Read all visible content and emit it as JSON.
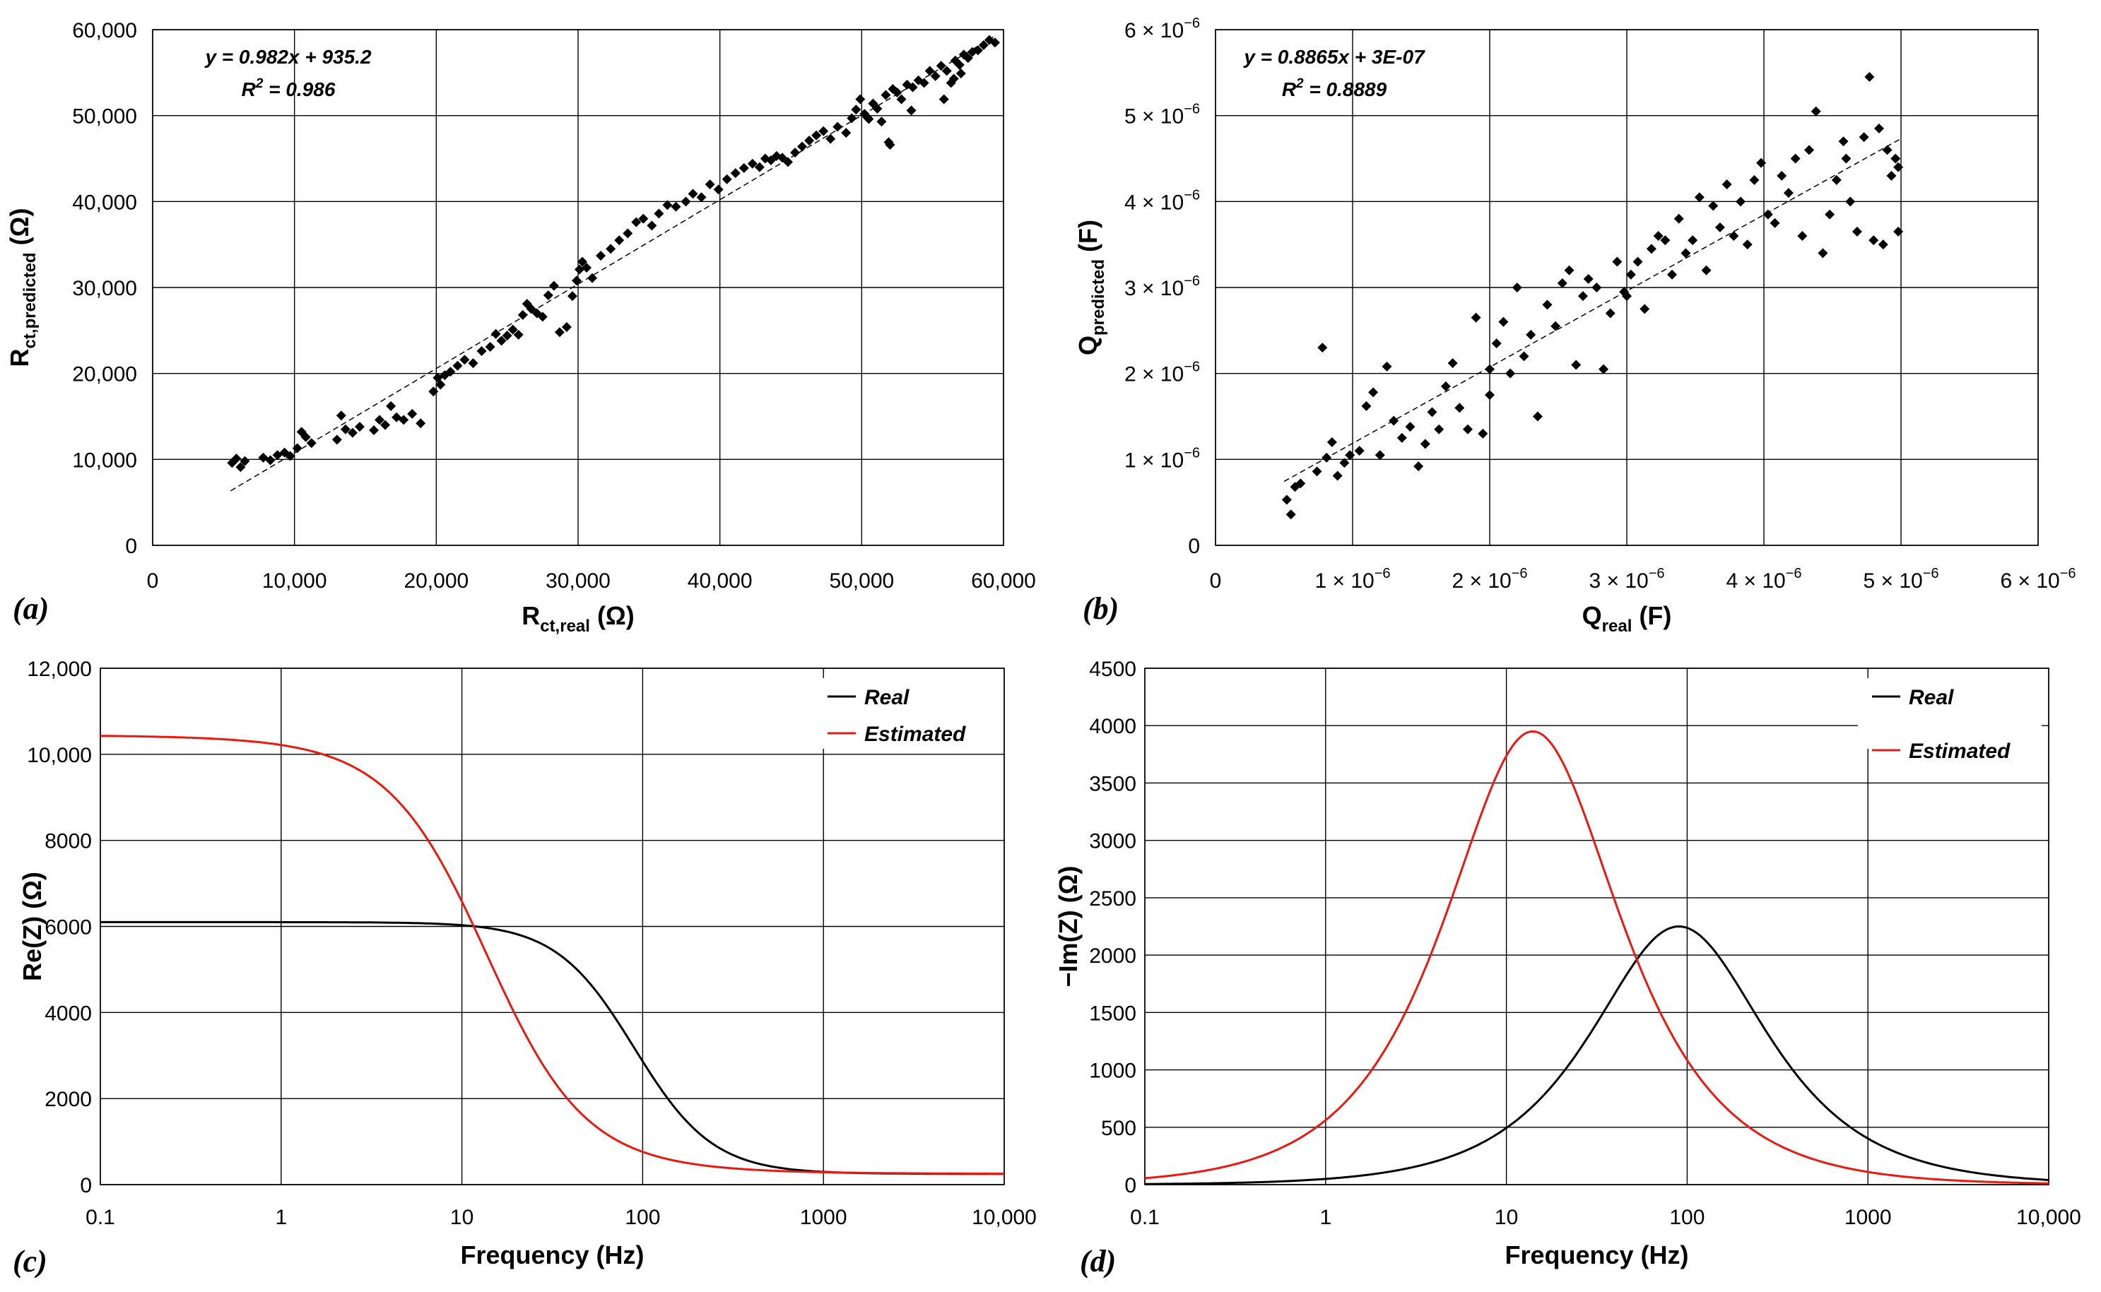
{
  "panels": {
    "a": {
      "label": "(a)"
    },
    "b": {
      "label": "(b)"
    },
    "c": {
      "label": "(c)"
    },
    "d": {
      "label": "(d)"
    }
  },
  "chart_data": [
    {
      "id": "a",
      "type": "scatter",
      "title": "",
      "xlabel_main": "R",
      "xlabel_sub": "ct,real",
      "xlabel_unit": " (Ω)",
      "ylabel_main": "R",
      "ylabel_sub": "ct,predicted",
      "ylabel_unit": " (Ω)",
      "xlim": [
        0,
        60000
      ],
      "ylim": [
        0,
        60000
      ],
      "xticks": [
        0,
        10000,
        20000,
        30000,
        40000,
        50000,
        60000
      ],
      "xtick_labels": [
        "0",
        "10,000",
        "20,000",
        "30,000",
        "40,000",
        "50,000",
        "60,000"
      ],
      "yticks": [
        0,
        10000,
        20000,
        30000,
        40000,
        50000,
        60000
      ],
      "ytick_labels": [
        "0",
        "10,000",
        "20,000",
        "30,000",
        "40,000",
        "50,000",
        "60,000"
      ],
      "grid": true,
      "trendline": {
        "slope": 0.982,
        "intercept": 935.2,
        "x_range": [
          5500,
          59500
        ]
      },
      "equation": "y = 0.982x + 935.2",
      "r2_prefix": "R",
      "r2_power": "2",
      "r2_value": " = 0.986",
      "points": [
        [
          5600,
          9600
        ],
        [
          5900,
          10100
        ],
        [
          6200,
          9100
        ],
        [
          6500,
          9800
        ],
        [
          7800,
          10200
        ],
        [
          8300,
          9900
        ],
        [
          8800,
          10500
        ],
        [
          9300,
          10800
        ],
        [
          9700,
          10400
        ],
        [
          10200,
          11300
        ],
        [
          10500,
          13200
        ],
        [
          10800,
          12600
        ],
        [
          11200,
          11900
        ],
        [
          13000,
          12300
        ],
        [
          13300,
          15100
        ],
        [
          13600,
          13500
        ],
        [
          14100,
          13100
        ],
        [
          14600,
          13800
        ],
        [
          15600,
          13400
        ],
        [
          16000,
          14600
        ],
        [
          16400,
          14000
        ],
        [
          16800,
          16200
        ],
        [
          17200,
          14900
        ],
        [
          17700,
          14600
        ],
        [
          18300,
          15300
        ],
        [
          18900,
          14200
        ],
        [
          19800,
          17900
        ],
        [
          20100,
          19500
        ],
        [
          20300,
          18700
        ],
        [
          20600,
          19800
        ],
        [
          21000,
          20200
        ],
        [
          21500,
          20900
        ],
        [
          22000,
          21600
        ],
        [
          22600,
          21200
        ],
        [
          23200,
          22600
        ],
        [
          23800,
          23100
        ],
        [
          24200,
          24600
        ],
        [
          24600,
          23800
        ],
        [
          25000,
          24400
        ],
        [
          25400,
          25100
        ],
        [
          25800,
          24500
        ],
        [
          26100,
          26800
        ],
        [
          26400,
          28100
        ],
        [
          26700,
          27500
        ],
        [
          27100,
          27000
        ],
        [
          27500,
          26600
        ],
        [
          27900,
          29100
        ],
        [
          28300,
          30200
        ],
        [
          28700,
          24800
        ],
        [
          29200,
          25400
        ],
        [
          29600,
          29000
        ],
        [
          29900,
          30800
        ],
        [
          30100,
          32100
        ],
        [
          30300,
          33000
        ],
        [
          30600,
          32300
        ],
        [
          31000,
          31100
        ],
        [
          31600,
          33700
        ],
        [
          32300,
          34500
        ],
        [
          32900,
          35500
        ],
        [
          33500,
          36300
        ],
        [
          34100,
          37600
        ],
        [
          34600,
          38000
        ],
        [
          35200,
          37200
        ],
        [
          35700,
          38600
        ],
        [
          36300,
          39600
        ],
        [
          36900,
          39400
        ],
        [
          37600,
          40000
        ],
        [
          38100,
          40900
        ],
        [
          38700,
          40500
        ],
        [
          39300,
          42000
        ],
        [
          39900,
          41400
        ],
        [
          40500,
          42600
        ],
        [
          41100,
          43300
        ],
        [
          41700,
          43900
        ],
        [
          42300,
          44400
        ],
        [
          42800,
          44000
        ],
        [
          43200,
          45000
        ],
        [
          43600,
          44800
        ],
        [
          44000,
          45300
        ],
        [
          44400,
          45100
        ],
        [
          44800,
          44600
        ],
        [
          45300,
          45700
        ],
        [
          45800,
          46400
        ],
        [
          46300,
          47100
        ],
        [
          46800,
          47700
        ],
        [
          47300,
          48200
        ],
        [
          47800,
          47300
        ],
        [
          48300,
          48700
        ],
        [
          48900,
          48000
        ],
        [
          49300,
          49700
        ],
        [
          49600,
          50700
        ],
        [
          49900,
          51900
        ],
        [
          50200,
          50200
        ],
        [
          50500,
          49600
        ],
        [
          50800,
          51400
        ],
        [
          51100,
          50800
        ],
        [
          51400,
          49300
        ],
        [
          51700,
          52400
        ],
        [
          51900,
          46900
        ],
        [
          52200,
          53100
        ],
        [
          52500,
          52700
        ],
        [
          52800,
          51900
        ],
        [
          53200,
          53600
        ],
        [
          53600,
          53300
        ],
        [
          54000,
          54100
        ],
        [
          54400,
          53800
        ],
        [
          54800,
          55200
        ],
        [
          55200,
          54600
        ],
        [
          55600,
          55800
        ],
        [
          56000,
          55200
        ],
        [
          56300,
          53800
        ],
        [
          56600,
          56400
        ],
        [
          56900,
          55900
        ],
        [
          57200,
          57100
        ],
        [
          57500,
          56700
        ],
        [
          57800,
          57400
        ],
        [
          58200,
          57600
        ],
        [
          58600,
          58200
        ],
        [
          59000,
          58800
        ],
        [
          59400,
          58500
        ],
        [
          52000,
          46600
        ],
        [
          55800,
          51900
        ],
        [
          56500,
          54300
        ],
        [
          57000,
          54900
        ],
        [
          53500,
          50600
        ],
        [
          50400,
          49800
        ]
      ]
    },
    {
      "id": "b",
      "type": "scatter",
      "title": "",
      "xlabel_main": "Q",
      "xlabel_sub": "real",
      "xlabel_unit": " (F)",
      "ylabel_main": "Q",
      "ylabel_sub": "predicted",
      "ylabel_unit": " (F)",
      "xlim": [
        0,
        6e-06
      ],
      "ylim": [
        0,
        6e-06
      ],
      "xticks": [
        0,
        1e-06,
        2e-06,
        3e-06,
        4e-06,
        5e-06,
        6e-06
      ],
      "xtick_labels": [
        "0",
        "1 × 10",
        "2 × 10",
        "3 × 10",
        "4 × 10",
        "5 × 10",
        "6 × 10"
      ],
      "yticks": [
        0,
        1e-06,
        2e-06,
        3e-06,
        4e-06,
        5e-06,
        6e-06
      ],
      "ytick_labels": [
        "0",
        "1 × 10",
        "2 × 10",
        "3 × 10",
        "4 × 10",
        "5 × 10",
        "6 × 10"
      ],
      "tick_exponent": "−6",
      "grid": true,
      "trendline": {
        "slope": 0.8865,
        "intercept": 3e-07,
        "x_range": [
          5e-07,
          5e-06
        ]
      },
      "equation": "y = 0.8865x + 3E-07",
      "r2_prefix": "R",
      "r2_power": "2",
      "r2_value": " = 0.8889",
      "points": [
        [
          5.2e-07,
          5.3e-07
        ],
        [
          5.5e-07,
          3.6e-07
        ],
        [
          5.8e-07,
          6.8e-07
        ],
        [
          6.2e-07,
          7.2e-07
        ],
        [
          7.8e-07,
          2.3e-06
        ],
        [
          7.4e-07,
          8.6e-07
        ],
        [
          8.1e-07,
          1.02e-06
        ],
        [
          8.5e-07,
          1.2e-06
        ],
        [
          8.9e-07,
          8.1e-07
        ],
        [
          9.4e-07,
          9.6e-07
        ],
        [
          9.8e-07,
          1.05e-06
        ],
        [
          1.05e-06,
          1.1e-06
        ],
        [
          1.1e-06,
          1.62e-06
        ],
        [
          1.15e-06,
          1.78e-06
        ],
        [
          1.2e-06,
          1.05e-06
        ],
        [
          1.25e-06,
          2.08e-06
        ],
        [
          1.3e-06,
          1.45e-06
        ],
        [
          1.36e-06,
          1.25e-06
        ],
        [
          1.42e-06,
          1.38e-06
        ],
        [
          1.48e-06,
          9.2e-07
        ],
        [
          1.53e-06,
          1.18e-06
        ],
        [
          1.58e-06,
          1.55e-06
        ],
        [
          1.63e-06,
          1.35e-06
        ],
        [
          1.68e-06,
          1.85e-06
        ],
        [
          1.73e-06,
          2.12e-06
        ],
        [
          1.78e-06,
          1.6e-06
        ],
        [
          1.84e-06,
          1.35e-06
        ],
        [
          1.9e-06,
          2.65e-06
        ],
        [
          1.95e-06,
          1.3e-06
        ],
        [
          2e-06,
          1.75e-06
        ],
        [
          2.05e-06,
          2.35e-06
        ],
        [
          2.1e-06,
          2.6e-06
        ],
        [
          2.15e-06,
          2e-06
        ],
        [
          2.2e-06,
          3e-06
        ],
        [
          2.25e-06,
          2.2e-06
        ],
        [
          2.3e-06,
          2.45e-06
        ],
        [
          2.35e-06,
          1.5e-06
        ],
        [
          2.42e-06,
          2.8e-06
        ],
        [
          2.48e-06,
          2.55e-06
        ],
        [
          2.53e-06,
          3.05e-06
        ],
        [
          2.58e-06,
          3.2e-06
        ],
        [
          2.63e-06,
          2.1e-06
        ],
        [
          2.68e-06,
          2.9e-06
        ],
        [
          2.72e-06,
          3.1e-06
        ],
        [
          2.78e-06,
          3e-06
        ],
        [
          2.83e-06,
          2.05e-06
        ],
        [
          2.88e-06,
          2.7e-06
        ],
        [
          2.93e-06,
          3.3e-06
        ],
        [
          2.98e-06,
          2.95e-06
        ],
        [
          3.03e-06,
          3.15e-06
        ],
        [
          3.08e-06,
          3.3e-06
        ],
        [
          3.13e-06,
          2.75e-06
        ],
        [
          3.18e-06,
          3.45e-06
        ],
        [
          3.23e-06,
          3.6e-06
        ],
        [
          3.28e-06,
          3.55e-06
        ],
        [
          3.33e-06,
          3.15e-06
        ],
        [
          3.38e-06,
          3.8e-06
        ],
        [
          3.43e-06,
          3.4e-06
        ],
        [
          3.48e-06,
          3.55e-06
        ],
        [
          3.53e-06,
          4.05e-06
        ],
        [
          3.58e-06,
          3.2e-06
        ],
        [
          3.63e-06,
          3.95e-06
        ],
        [
          3.68e-06,
          3.7e-06
        ],
        [
          3.73e-06,
          4.2e-06
        ],
        [
          3.78e-06,
          3.6e-06
        ],
        [
          3.83e-06,
          4e-06
        ],
        [
          3.88e-06,
          3.5e-06
        ],
        [
          3.93e-06,
          4.25e-06
        ],
        [
          3.98e-06,
          4.45e-06
        ],
        [
          4.03e-06,
          3.85e-06
        ],
        [
          4.08e-06,
          3.75e-06
        ],
        [
          4.13e-06,
          4.3e-06
        ],
        [
          4.18e-06,
          4.1e-06
        ],
        [
          4.23e-06,
          4.5e-06
        ],
        [
          4.28e-06,
          3.6e-06
        ],
        [
          4.33e-06,
          4.6e-06
        ],
        [
          4.38e-06,
          5.05e-06
        ],
        [
          4.43e-06,
          3.4e-06
        ],
        [
          4.48e-06,
          3.85e-06
        ],
        [
          4.53e-06,
          4.25e-06
        ],
        [
          4.58e-06,
          4.7e-06
        ],
        [
          4.63e-06,
          4e-06
        ],
        [
          4.68e-06,
          3.65e-06
        ],
        [
          4.73e-06,
          4.75e-06
        ],
        [
          4.77e-06,
          5.45e-06
        ],
        [
          4.8e-06,
          3.55e-06
        ],
        [
          4.84e-06,
          4.85e-06
        ],
        [
          4.87e-06,
          3.5e-06
        ],
        [
          4.9e-06,
          4.6e-06
        ],
        [
          4.93e-06,
          4.3e-06
        ],
        [
          4.96e-06,
          4.5e-06
        ],
        [
          4.98e-06,
          3.65e-06
        ],
        [
          4.98e-06,
          4.4e-06
        ],
        [
          4.6e-06,
          4.5e-06
        ],
        [
          3e-06,
          2.9e-06
        ],
        [
          2e-06,
          2.05e-06
        ]
      ]
    },
    {
      "id": "c",
      "type": "line",
      "title": "",
      "xscale": "log",
      "xlabel": "Frequency (Hz)",
      "ylabel": "Re(Z) (Ω)",
      "xlim": [
        0.1,
        10000
      ],
      "ylim": [
        0,
        12000
      ],
      "xticks": [
        0.1,
        1,
        10,
        100,
        1000,
        10000
      ],
      "xtick_labels": [
        "0.1",
        "1",
        "10",
        "100",
        "1000",
        "10,000"
      ],
      "yticks": [
        0,
        2000,
        4000,
        6000,
        8000,
        10000,
        12000
      ],
      "ytick_labels": [
        "0",
        "2000",
        "4000",
        "6000",
        "8000",
        "10,000",
        "12,000"
      ],
      "grid": true,
      "legend_position": "top-right",
      "series": [
        {
          "name": "Real",
          "color": "#000000",
          "model": "re",
          "R0": 250,
          "R1": 5850,
          "tau": 0.00177,
          "alpha": 1.0
        },
        {
          "name": "Estimated",
          "color": "#e8190f",
          "model": "re",
          "R0": 250,
          "R1": 10200,
          "tau": 0.0116,
          "alpha": 0.9
        }
      ]
    },
    {
      "id": "d",
      "type": "line",
      "title": "",
      "xscale": "log",
      "xlabel": "Frequency (Hz)",
      "ylabel": "−Im(Z) (Ω)",
      "xlim": [
        0.1,
        10000
      ],
      "ylim": [
        0,
        4500
      ],
      "xticks": [
        0.1,
        1,
        10,
        100,
        1000,
        10000
      ],
      "xtick_labels": [
        "0.1",
        "1",
        "10",
        "100",
        "1000",
        "10,000"
      ],
      "yticks": [
        0,
        500,
        1000,
        1500,
        2000,
        2500,
        3000,
        3500,
        4000,
        4500
      ],
      "ytick_labels": [
        "0",
        "500",
        "1000",
        "1500",
        "2000",
        "2500",
        "3000",
        "3500",
        "4000",
        "4500"
      ],
      "grid": true,
      "legend_position": "top-right",
      "series": [
        {
          "name": "Real",
          "color": "#000000",
          "model": "im",
          "peak": 2250,
          "fpeak": 90
        },
        {
          "name": "Estimated",
          "color": "#e8190f",
          "model": "im",
          "peak": 3950,
          "fpeak": 14
        }
      ]
    }
  ]
}
